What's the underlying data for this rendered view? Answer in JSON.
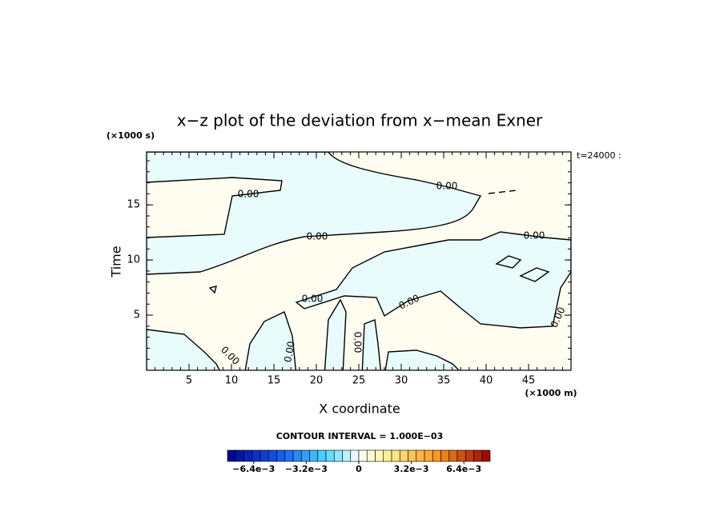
{
  "chart_data": {
    "type": "contour",
    "title": "x−z plot of the deviation from x−mean Exner",
    "xlabel": "X coordinate",
    "ylabel": "Time",
    "xunit": "(×1000 m)",
    "yunit": "(×1000 s)",
    "time_label": "t=24000 :",
    "xlim": [
      0,
      50
    ],
    "xticks": [
      5,
      10,
      15,
      20,
      25,
      30,
      35,
      40,
      45
    ],
    "ylim": [
      0,
      19.8
    ],
    "yticks": [
      5,
      10,
      15
    ],
    "contour_labels": [
      "0.00",
      "0.00",
      "0.00",
      "0.00",
      "0.00",
      "0.00",
      "0.00",
      "0.00",
      "0.00",
      "0.00"
    ],
    "contour_interval": "CONTOUR INTERVAL = 1.000E−03",
    "colorbar": {
      "lim": [
        -0.008,
        0.008
      ],
      "ticks": [
        {
          "value": -0.0064,
          "label": "−6.4e−3"
        },
        {
          "value": -0.0032,
          "label": "−3.2e−3"
        },
        0,
        {
          "value": 0.0032,
          "label": "3.2e−3"
        },
        {
          "value": 0.0064,
          "label": "6.4e−3"
        }
      ]
    }
  }
}
